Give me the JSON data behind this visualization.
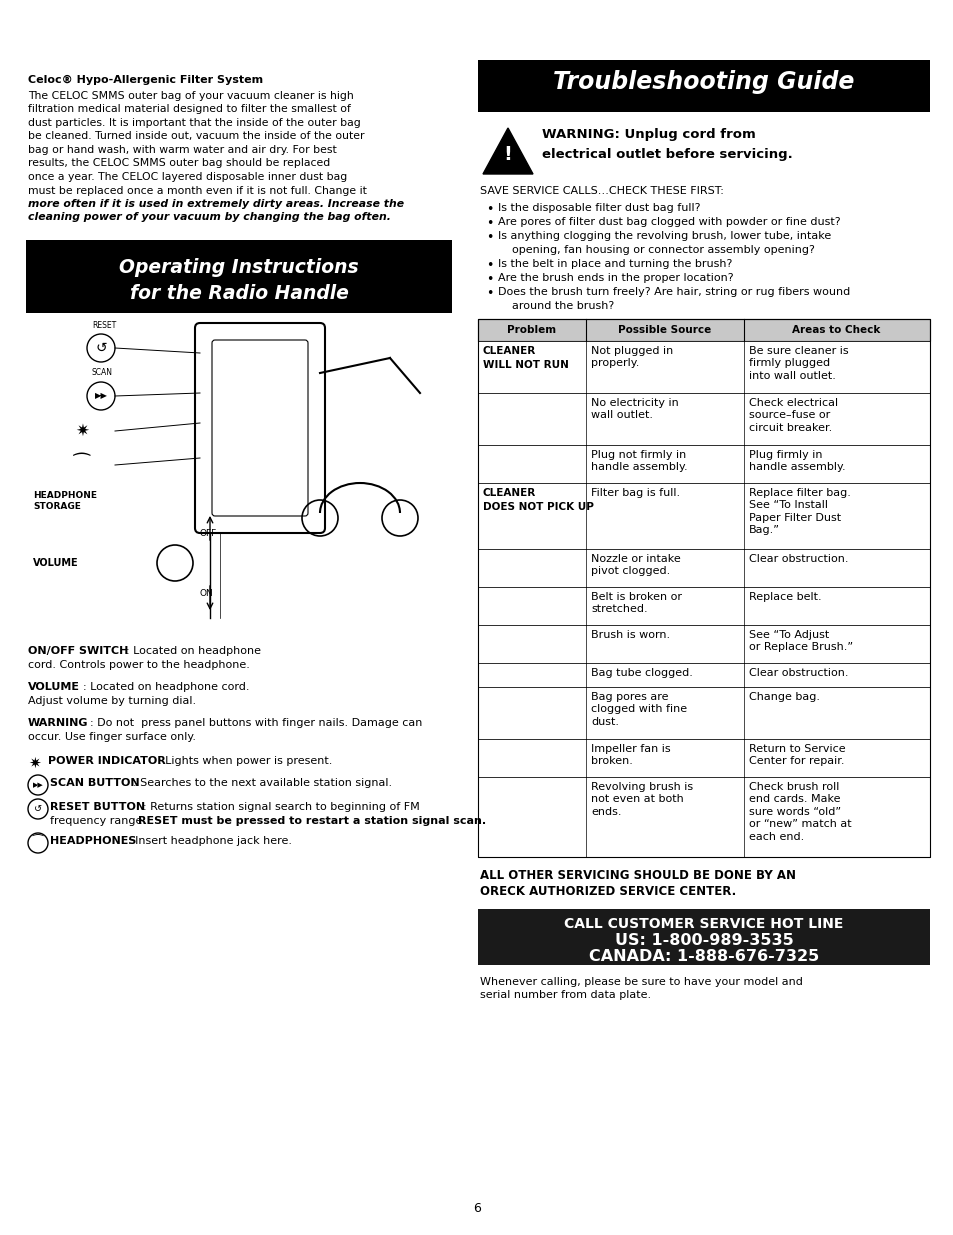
{
  "page_bg": "#ffffff",
  "page_width": 9.54,
  "page_height": 12.35,
  "celoc_title": "Celoc® Hypo-Allergenic Filter System",
  "celoc_body_lines": [
    "The CELOC SMMS outer bag of your vacuum cleaner is high",
    "filtration medical material designed to filter the smallest of",
    "dust particles. It is important that the inside of the outer bag",
    "be cleaned. Turned inside out, vacuum the inside of the outer",
    "bag or hand wash, with warm water and air dry. For best",
    "results, the CELOC SMMS outer bag should be replaced",
    "once a year. The CELOC layered disposable inner dust bag",
    "must be replaced once a month even if it is not full. Change it",
    "more often if it is used in extremely dirty areas. Increase the",
    "cleaning power of your vacuum by changing the bag often."
  ],
  "op_instr_line1": "Operating Instructions",
  "op_instr_line2": "for the Radio Handle",
  "ts_guide_title": "Troubleshooting Guide",
  "warning_line1": "WARNING: Unplug cord from",
  "warning_line2": "electrical outlet before servicing.",
  "save_service": "SAVE SERVICE CALLS…CHECK THESE FIRST:",
  "bullets": [
    "Is the disposable filter dust bag full?",
    "Are pores of filter dust bag clogged with powder or fine dust?",
    "Is anything clogging the revolving brush, lower tube, intake\n    opening, fan housing or connector assembly opening?",
    "Is the belt in place and turning the brush?",
    "Are the brush ends in the proper location?",
    "Does the brush turn freely? Are hair, string or rug fibers wound\n    around the brush?"
  ],
  "col1_header": "Problem",
  "col2_header": "Possible Source",
  "col3_header": "Areas to Check",
  "table_rows": [
    [
      "CLEANER\nWILL NOT RUN",
      "Not plugged in\nproperly.",
      "Be sure cleaner is\nfirmly plugged\ninto wall outlet."
    ],
    [
      "",
      "No electricity in\nwall outlet.",
      "Check electrical\nsource–fuse or\ncircuit breaker."
    ],
    [
      "",
      "Plug not firmly in\nhandle assembly.",
      "Plug firmly in\nhandle assembly."
    ],
    [
      "CLEANER\nDOES NOT PICK UP",
      "Filter bag is full.",
      "Replace filter bag.\nSee “To Install\nPaper Filter Dust\nBag.”"
    ],
    [
      "",
      "Nozzle or intake\npivot clogged.",
      "Clear obstruction."
    ],
    [
      "",
      "Belt is broken or\nstretched.",
      "Replace belt."
    ],
    [
      "",
      "Brush is worn.",
      "See “To Adjust\nor Replace Brush.”"
    ],
    [
      "",
      "Bag tube clogged.",
      "Clear obstruction."
    ],
    [
      "",
      "Bag pores are\nclogged with fine\ndust.",
      "Change bag."
    ],
    [
      "",
      "Impeller fan is\nbroken.",
      "Return to Service\nCenter for repair."
    ],
    [
      "",
      "Revolving brush is\nnot even at both\nends.",
      "Check brush roll\nend cards. Make\nsure words “old”\nor “new” match at\neach end."
    ]
  ],
  "all_other_1": "ALL OTHER SERVICING SHOULD BE DONE BY AN",
  "all_other_2": "ORECK AUTHORIZED SERVICE CENTER.",
  "ccs_1": "CALL CUSTOMER SERVICE HOT LINE",
  "ccs_2": "US: 1-800-989-3535",
  "ccs_3": "CANADA: 1-888-676-7325",
  "whenever": "Whenever calling, please be sure to have your model and\nserial number from data plate.",
  "page_num": "6",
  "on_off_b": "ON/OFF SWITCH",
  "on_off_r": ": Located on headphone\ncord. Controls power to the headphone.",
  "volume_b": "VOLUME",
  "volume_r": ": Located on headphone cord.\nAdjust volume by turning dial.",
  "warning_b": "WARNING",
  "warning_r": ": Do not  press panel buttons with finger nails. Damage can\noccur. Use finger surface only.",
  "power_b": "POWER INDICATOR",
  "power_r": ": Lights when power is present.",
  "scan_b": "SCAN BUTTON",
  "scan_r": ": Searches to the next available station signal.",
  "reset_b": "RESET BUTTON",
  "reset_r1": ": Returns station signal search to beginning of FM",
  "reset_r2_b": "RESET must be pressed to restart a station signal scan.",
  "reset_r2_pre": "frequency range. ",
  "hp_b": "HEADPHONES",
  "hp_r": ": Insert headphone jack here."
}
